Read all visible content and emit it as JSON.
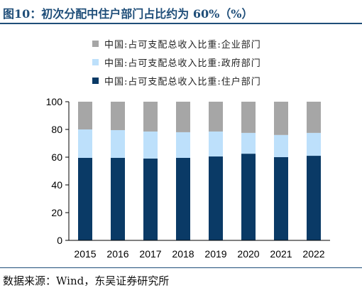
{
  "title": "图10：初次分配中住户部门占比约为 60%（%）",
  "source": "数据来源：Wind，东吴证券研究所",
  "colors": {
    "enterprise": "#a6a6a6",
    "government": "#bde0fb",
    "household": "#0a3a66",
    "axis": "#000000",
    "title": "#1f4e79"
  },
  "chart_data": {
    "type": "bar",
    "stacked": true,
    "categories": [
      "2015",
      "2016",
      "2017",
      "2018",
      "2019",
      "2020",
      "2021",
      "2022"
    ],
    "series": [
      {
        "name": "中国:占可支配总收入比重:住户部门",
        "values": [
          59.5,
          59.5,
          59.0,
          59.5,
          60.5,
          62.5,
          60.0,
          61.0
        ]
      },
      {
        "name": "中国:占可支配总收入比重:政府部门",
        "values": [
          20.5,
          20.0,
          19.5,
          18.5,
          18.0,
          15.0,
          16.0,
          16.5
        ]
      },
      {
        "name": "中国:占可支配总收入比重:企业部门",
        "values": [
          20.0,
          20.5,
          21.5,
          22.0,
          21.5,
          22.5,
          24.0,
          22.5
        ]
      }
    ],
    "yticks": [
      0,
      20,
      40,
      60,
      80,
      100
    ],
    "ylim": [
      0,
      100
    ],
    "legend_position": "top",
    "grid": false
  }
}
